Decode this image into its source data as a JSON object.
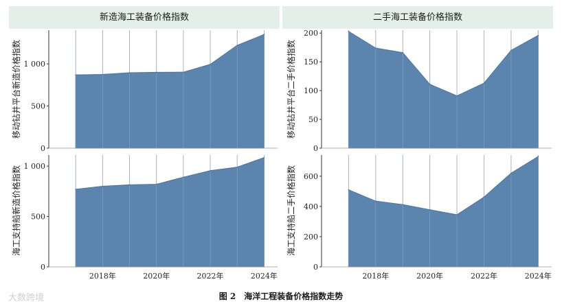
{
  "columns": {
    "left": "新造海工装备价格指数",
    "right": "二手海工装备价格指数"
  },
  "caption": "图 2　海洋工程装备价格指数走势",
  "watermark": "大数跨境",
  "colors": {
    "fill": "#5b84ae",
    "line": "#4a73a0",
    "grid": "#c9c9c9",
    "header_bg": "#e3efe9"
  },
  "chart_data": [
    {
      "type": "area",
      "ylabel": "移动钻井平台新造价格指数",
      "x": [
        2017,
        2018,
        2019,
        2020,
        2021,
        2022,
        2023,
        2024
      ],
      "series": [
        {
          "values": [
            870,
            875,
            895,
            900,
            902,
            995,
            1220,
            1350
          ]
        }
      ],
      "ylim": [
        0,
        1400
      ],
      "yticks": [
        0,
        500,
        1000
      ],
      "ytick_labels": [
        "0",
        "500",
        "1 000"
      ],
      "grid": true
    },
    {
      "type": "area",
      "ylabel": "移动钻井平台二手价格指数",
      "x": [
        2017,
        2018,
        2019,
        2020,
        2021,
        2022,
        2023,
        2024
      ],
      "series": [
        {
          "values": [
            203,
            174,
            166,
            111,
            91,
            113,
            170,
            196
          ]
        }
      ],
      "ylim": [
        0,
        205
      ],
      "yticks": [
        0,
        50,
        100,
        150,
        200
      ],
      "ytick_labels": [
        "0",
        "50",
        "100",
        "150",
        "200"
      ],
      "grid": true
    },
    {
      "type": "area",
      "ylabel": "海工支持船新造价格指数",
      "x": [
        2017,
        2018,
        2019,
        2020,
        2021,
        2022,
        2023,
        2024
      ],
      "series": [
        {
          "values": [
            770,
            800,
            815,
            820,
            890,
            955,
            990,
            1085
          ]
        }
      ],
      "ylim": [
        0,
        1110
      ],
      "yticks": [
        0,
        500,
        1000
      ],
      "ytick_labels": [
        "0",
        "500",
        "1 000"
      ],
      "xticks": [
        2018,
        2020,
        2022,
        2024
      ],
      "xtick_labels": [
        "2018年",
        "2020年",
        "2022年",
        "2024年"
      ],
      "grid": true
    },
    {
      "type": "area",
      "ylabel": "海工支持船二手价格指数",
      "x": [
        2017,
        2018,
        2019,
        2020,
        2021,
        2022,
        2023,
        2024
      ],
      "series": [
        {
          "values": [
            510,
            435,
            412,
            378,
            345,
            462,
            620,
            730
          ]
        }
      ],
      "ylim": [
        0,
        740
      ],
      "yticks": [
        0,
        200,
        400,
        600
      ],
      "ytick_labels": [
        "0",
        "200",
        "400",
        "600"
      ],
      "xticks": [
        2018,
        2020,
        2022,
        2024
      ],
      "xtick_labels": [
        "2018年",
        "2020年",
        "2022年",
        "2024年"
      ],
      "grid": true
    }
  ]
}
